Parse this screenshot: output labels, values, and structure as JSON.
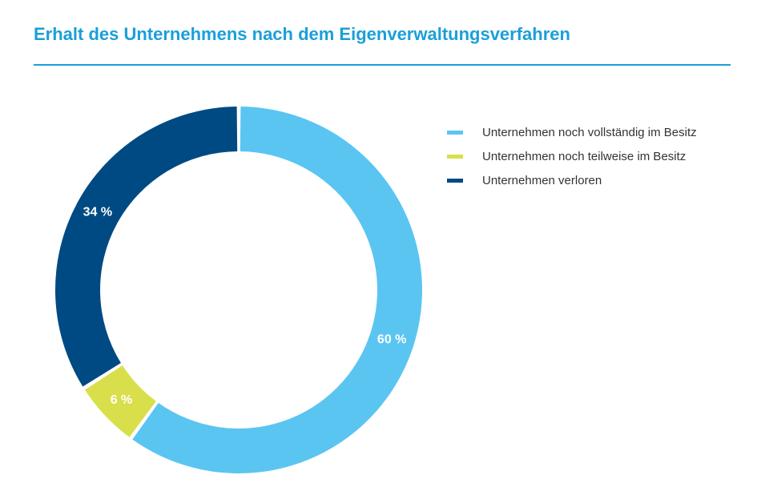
{
  "title": "Erhalt des Unternehmens nach dem Eigenverwaltungsverfahren",
  "chart_data": {
    "type": "pie",
    "title": "Erhalt des Unternehmens nach dem Eigenverwaltungsverfahren",
    "categories": [
      "Unternehmen noch vollständig im Besitz",
      "Unternehmen noch teilweise im Besitz",
      "Unternehmen verloren"
    ],
    "values": [
      60,
      6,
      34
    ],
    "labels": [
      "60 %",
      "6 %",
      "34 %"
    ],
    "colors": [
      "#5bc5f2",
      "#d9df4b",
      "#004a83"
    ],
    "donut": true,
    "legend": "right"
  }
}
